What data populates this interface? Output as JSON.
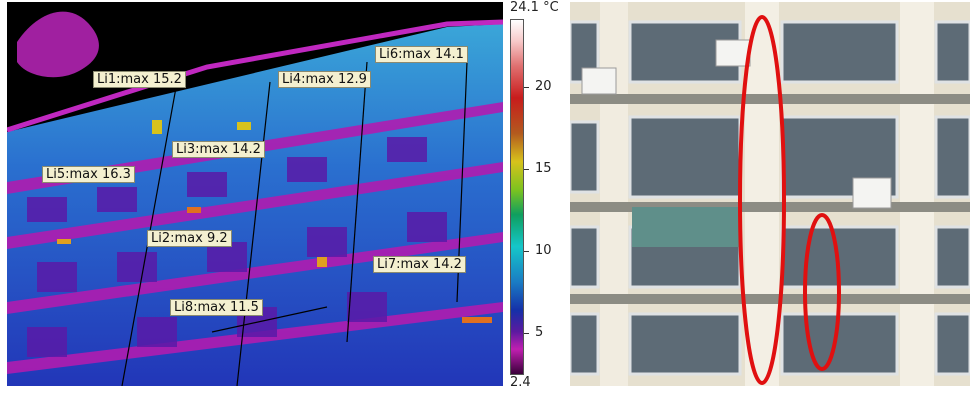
{
  "thermal_image": {
    "description_labels": [
      {
        "id": "li1",
        "text": "Li1:max 15.2"
      },
      {
        "id": "li2",
        "text": "Li2:max 9.2"
      },
      {
        "id": "li3",
        "text": "Li3:max 14.2"
      },
      {
        "id": "li4",
        "text": "Li4:max 12.9"
      },
      {
        "id": "li5",
        "text": "Li5:max 16.3"
      },
      {
        "id": "li6",
        "text": "Li6:max 14.1"
      },
      {
        "id": "li7",
        "text": "Li7:max 14.2"
      },
      {
        "id": "li8",
        "text": "Li8:max 11.5"
      }
    ]
  },
  "temperature_scale": {
    "max_label": "24.1 °C",
    "min_label": "2.4",
    "ticks": [
      "20",
      "15",
      "10",
      "5"
    ]
  },
  "photo": {
    "highlight_color": "#e01010"
  }
}
